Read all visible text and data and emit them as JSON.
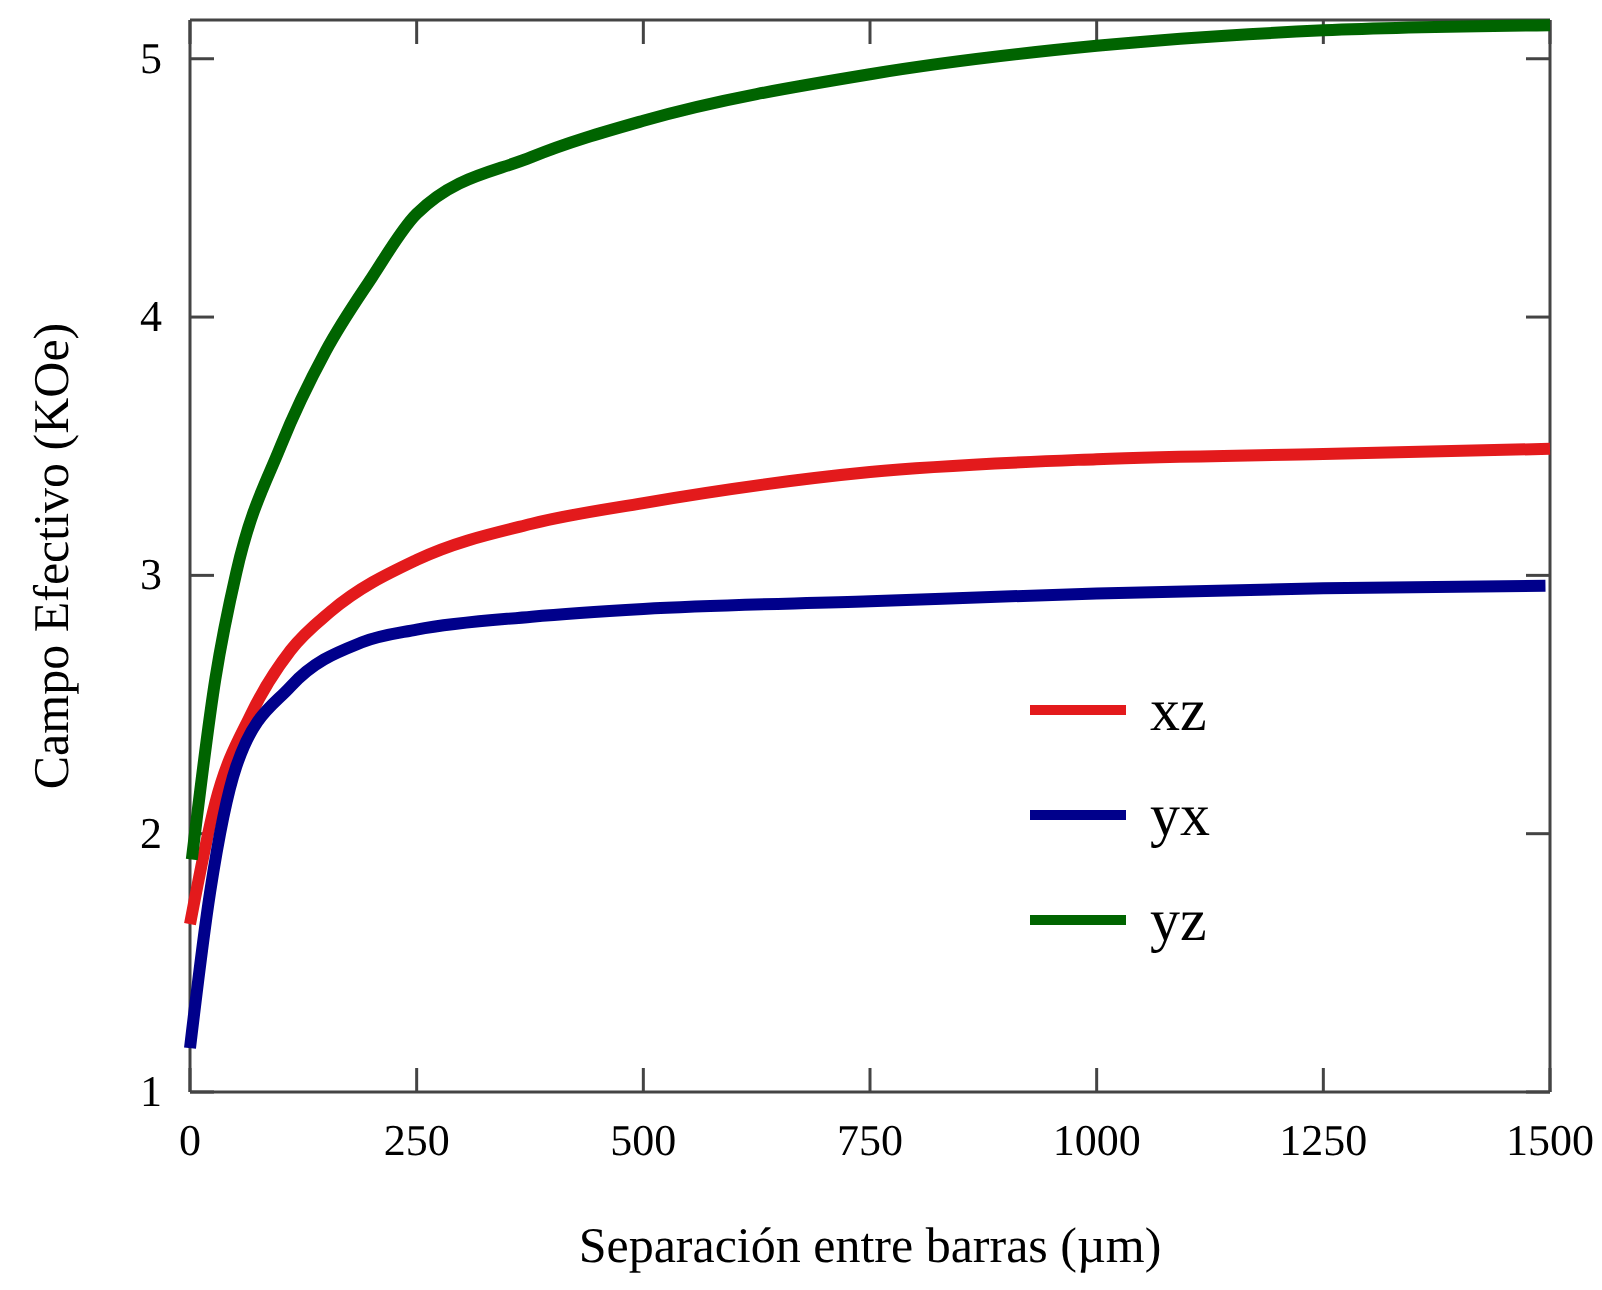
{
  "chart_data": {
    "type": "line",
    "xlabel": "Separación entre barras (µm)",
    "ylabel": "Campo Efectivo (KOe)",
    "xlim": [
      0,
      1500
    ],
    "ylim": [
      1,
      5.15
    ],
    "xticks": [
      0,
      250,
      500,
      750,
      1000,
      1250,
      1500
    ],
    "yticks": [
      1,
      2,
      3,
      4,
      5
    ],
    "legend": "bottom right",
    "grid": false,
    "line_style": "solid",
    "marker": "none",
    "series": [
      {
        "name": "xz",
        "color": "#e31a1c",
        "x": [
          0,
          28,
          67,
          111,
          155,
          250,
          377,
          500,
          750,
          1000,
          1250,
          1500
        ],
        "values": [
          1.65,
          2.12,
          2.46,
          2.71,
          2.86,
          3.06,
          3.2,
          3.28,
          3.4,
          3.45,
          3.47,
          3.49
        ]
      },
      {
        "name": "yx",
        "color": "#00008b",
        "x": [
          0,
          22,
          51,
          111,
          189,
          250,
          377,
          500,
          750,
          1000,
          1250,
          1495
        ],
        "values": [
          1.17,
          1.77,
          2.26,
          2.57,
          2.74,
          2.79,
          2.84,
          2.87,
          2.9,
          2.93,
          2.95,
          2.96
        ]
      },
      {
        "name": "yz",
        "color": "#006400",
        "x": [
          2,
          28,
          51,
          100,
          150,
          200,
          250,
          377,
          500,
          750,
          1000,
          1250,
          1500
        ],
        "values": [
          1.9,
          2.6,
          3.01,
          3.5,
          3.87,
          4.15,
          4.4,
          4.62,
          4.76,
          4.94,
          5.05,
          5.11,
          5.13
        ]
      }
    ]
  }
}
